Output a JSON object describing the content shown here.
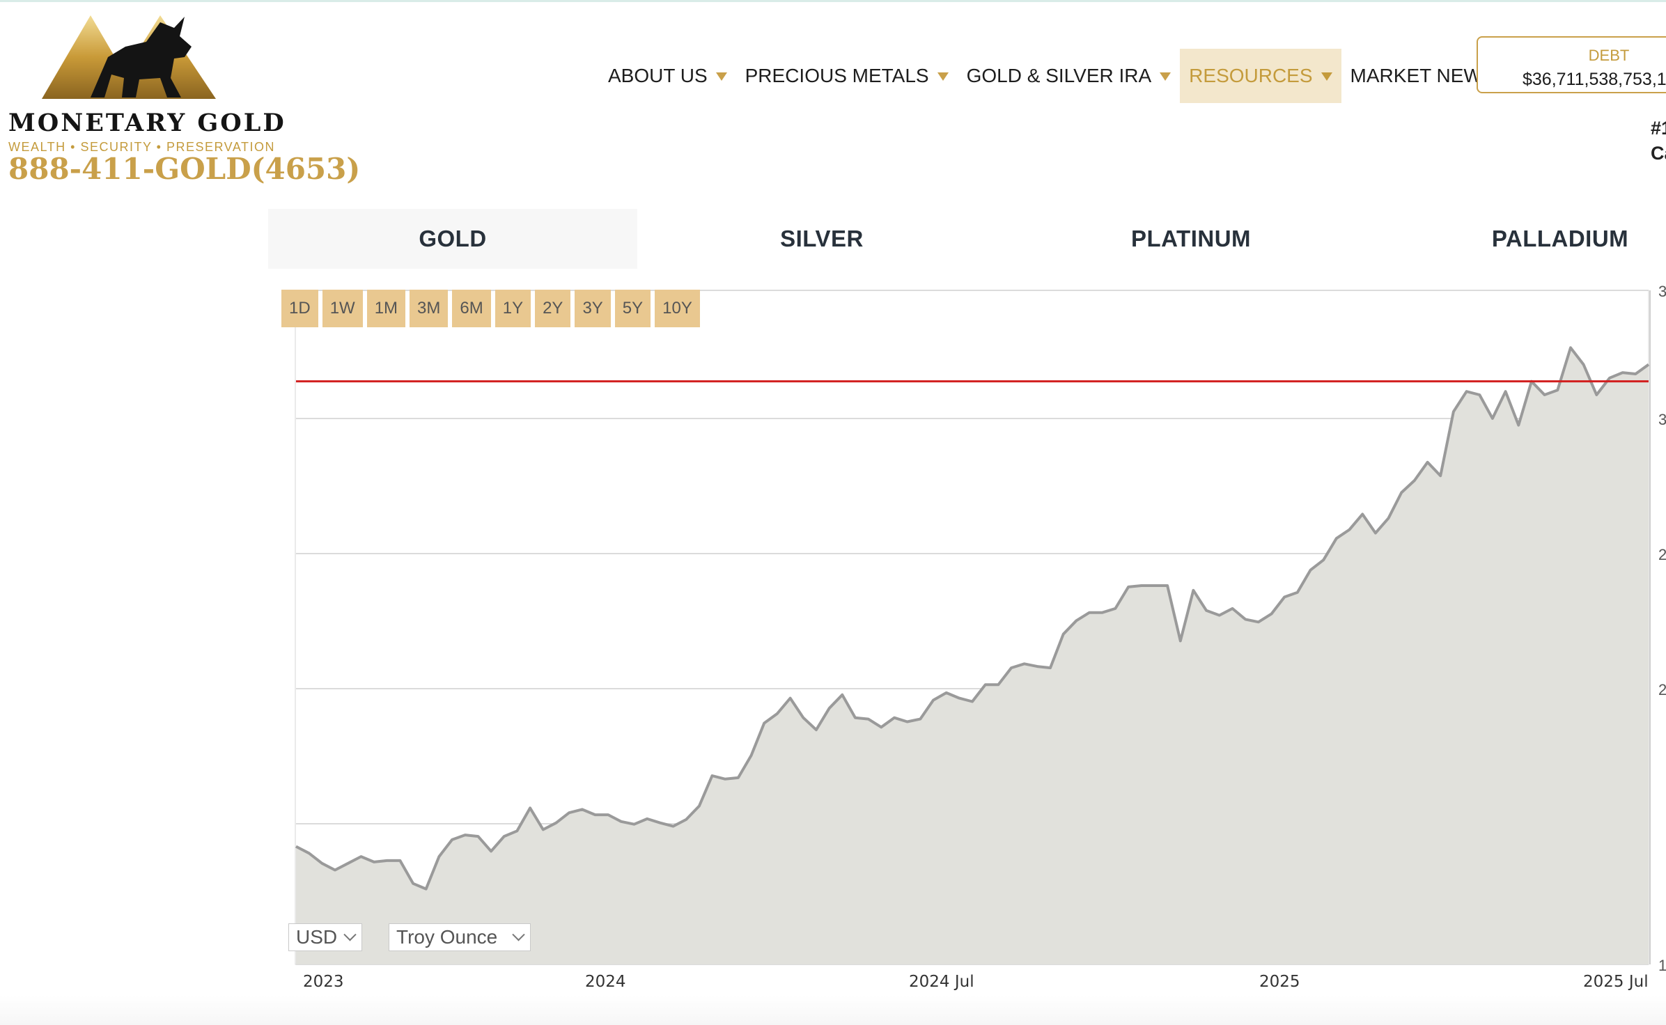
{
  "brand": {
    "name": "MONETARY GOLD",
    "tagline": "WEALTH • SECURITY • PRESERVATION",
    "phone": "888-411-GOLD(4653)"
  },
  "nav": {
    "items": [
      {
        "label": "ABOUT US",
        "dropdown": true
      },
      {
        "label": "PRECIOUS METALS",
        "dropdown": true
      },
      {
        "label": "GOLD & SILVER IRA",
        "dropdown": true
      },
      {
        "label": "RESOURCES",
        "dropdown": true,
        "active": true
      },
      {
        "label": "MARKET NEWS",
        "dropdown": false
      }
    ]
  },
  "debt": {
    "label": "DEBT",
    "value": "$36,711,538,753,1"
  },
  "side_note": [
    "#1",
    "Ca"
  ],
  "metal_tabs": [
    {
      "label": "GOLD",
      "active": true
    },
    {
      "label": "SILVER"
    },
    {
      "label": "PLATINUM"
    },
    {
      "label": "PALLADIUM"
    }
  ],
  "ranges": [
    "1D",
    "1W",
    "1M",
    "3M",
    "6M",
    "1Y",
    "2Y",
    "3Y",
    "5Y",
    "10Y"
  ],
  "controls": {
    "currency": "USD",
    "unit": "Troy Ounce"
  },
  "colors": {
    "accent_gold": "#c9a04a",
    "line": "#9a9a9a",
    "area": "#e1e1dc",
    "current_line": "#d21f1f",
    "range_button": "#e9c890"
  },
  "chart_data": {
    "type": "area",
    "x_labels": [
      "2023",
      "2024",
      "2024 Jul",
      "2025",
      "2025 Jul"
    ],
    "y_tick_labels": [
      "1",
      "",
      "2",
      "2",
      "3",
      "3"
    ],
    "current_value": 0.865,
    "values": [
      0.175,
      0.165,
      0.15,
      0.14,
      0.15,
      0.16,
      0.152,
      0.154,
      0.154,
      0.12,
      0.112,
      0.16,
      0.185,
      0.192,
      0.19,
      0.168,
      0.19,
      0.198,
      0.232,
      0.2,
      0.21,
      0.225,
      0.23,
      0.222,
      0.222,
      0.212,
      0.208,
      0.216,
      0.21,
      0.205,
      0.215,
      0.235,
      0.28,
      0.275,
      0.277,
      0.31,
      0.358,
      0.372,
      0.395,
      0.366,
      0.348,
      0.38,
      0.4,
      0.366,
      0.364,
      0.352,
      0.366,
      0.36,
      0.364,
      0.392,
      0.403,
      0.395,
      0.39,
      0.415,
      0.415,
      0.44,
      0.446,
      0.442,
      0.44,
      0.49,
      0.51,
      0.522,
      0.522,
      0.528,
      0.56,
      0.562,
      0.562,
      0.562,
      0.48,
      0.555,
      0.525,
      0.518,
      0.528,
      0.512,
      0.508,
      0.52,
      0.545,
      0.552,
      0.585,
      0.6,
      0.632,
      0.645,
      0.668,
      0.64,
      0.662,
      0.7,
      0.718,
      0.745,
      0.725,
      0.82,
      0.85,
      0.845,
      0.81,
      0.85,
      0.8,
      0.865,
      0.845,
      0.852,
      0.915,
      0.89,
      0.845,
      0.87,
      0.878,
      0.876,
      0.89
    ]
  }
}
